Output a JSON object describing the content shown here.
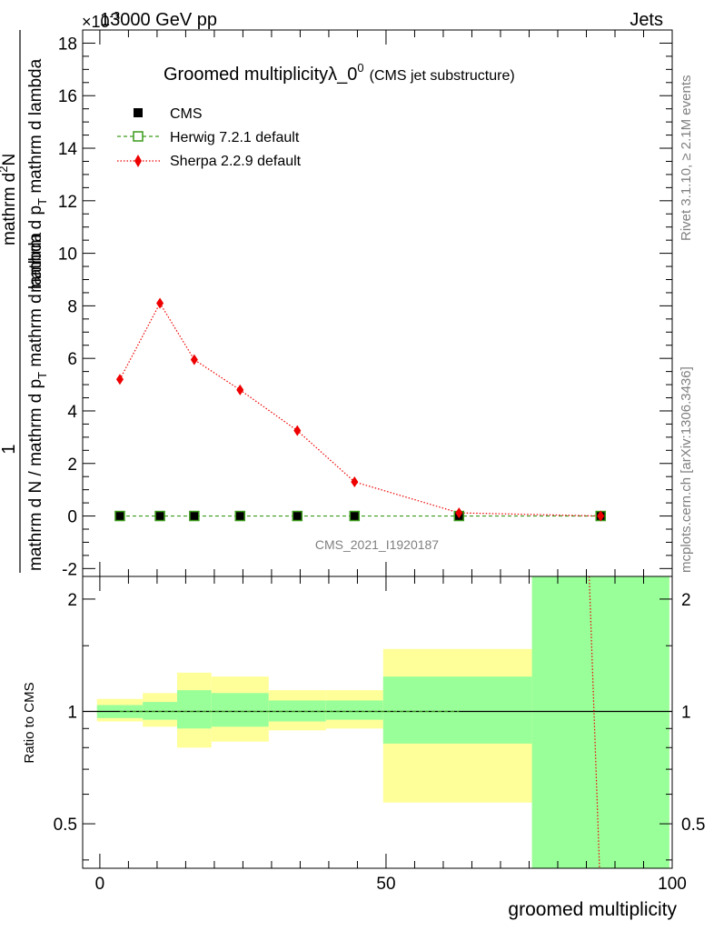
{
  "header": {
    "left": "13000 GeV pp",
    "right": "Jets",
    "exponent": "×10",
    "exponent_power": "-3"
  },
  "side_labels": {
    "rivet": "Rivet 3.1.10, ≥ 2.1M events",
    "mcplots": "mcplots.cern.ch [arXiv:1306.3436]"
  },
  "watermark": "CMS_2021_I1920187",
  "chart_data": [
    {
      "type": "line",
      "title_main": "Groomed multiplicityλ_0",
      "title_sup": "0",
      "title_sub": "(CMS jet substructure)",
      "ylabel_top": "1",
      "ylabel_numerator": "mathrm d",
      "ylabel_numerator_sup": "2",
      "ylabel_numerator_tail": "N",
      "ylabel_sub_p": "T",
      "ylabel_full_num": "mathrm d p",
      "ylabel_full_tail": " mathrm d lambda",
      "ylabel_den_pre": "mathrm d N / mathrm d p",
      "ylabel_den_tail": " mathrm d lambda",
      "ylim": [
        -2.3,
        18.5
      ],
      "yticks": [
        -2,
        0,
        2,
        4,
        6,
        8,
        10,
        12,
        14,
        16,
        18
      ],
      "xlim": [
        -3,
        100
      ],
      "legend": [
        {
          "name": "CMS",
          "marker": "square-filled",
          "color": "#000000"
        },
        {
          "name": "Herwig 7.2.1 default",
          "marker": "square-open",
          "color": "#3a9a1a"
        },
        {
          "name": "Sherpa 2.2.9 default",
          "marker": "diamond",
          "color": "#ee0000"
        }
      ],
      "series": [
        {
          "name": "CMS",
          "x": [
            3.5,
            10.5,
            16.5,
            24.5,
            34.5,
            44.5,
            62.75,
            87.5
          ],
          "y": [
            0,
            0,
            0,
            0,
            0,
            0,
            0,
            0
          ]
        },
        {
          "name": "Herwig 7.2.1 default",
          "x": [
            3.5,
            10.5,
            16.5,
            24.5,
            34.5,
            44.5,
            62.75,
            87.5
          ],
          "y": [
            0,
            0,
            0,
            0,
            0,
            0,
            0,
            0
          ]
        },
        {
          "name": "Sherpa 2.2.9 default",
          "x": [
            3.5,
            10.5,
            16.5,
            24.5,
            34.5,
            44.5,
            62.75,
            87.5
          ],
          "y": [
            5.2,
            8.1,
            5.95,
            4.8,
            3.25,
            1.3,
            0.12,
            0.0
          ]
        }
      ]
    },
    {
      "type": "area",
      "ylabel": "Ratio to CMS",
      "xlabel": "groomed multiplicity",
      "ylim": [
        0.38,
        2.3
      ],
      "yticks": [
        0.5,
        1,
        2
      ],
      "xlim": [
        -3,
        100
      ],
      "xticks": [
        0,
        50,
        100
      ],
      "bins": [
        {
          "x0": -0.5,
          "x1": 7.5,
          "y_lo": 0.94,
          "y_hi": 1.08,
          "g_lo": 0.96,
          "g_hi": 1.04
        },
        {
          "x0": 7.5,
          "x1": 13.5,
          "y_lo": 0.91,
          "y_hi": 1.12,
          "g_lo": 0.95,
          "g_hi": 1.06
        },
        {
          "x0": 13.5,
          "x1": 19.5,
          "y_lo": 0.8,
          "y_hi": 1.27,
          "g_lo": 0.9,
          "g_hi": 1.14
        },
        {
          "x0": 19.5,
          "x1": 29.5,
          "y_lo": 0.83,
          "y_hi": 1.24,
          "g_lo": 0.91,
          "g_hi": 1.12
        },
        {
          "x0": 29.5,
          "x1": 39.5,
          "y_lo": 0.89,
          "y_hi": 1.14,
          "g_lo": 0.94,
          "g_hi": 1.07
        },
        {
          "x0": 39.5,
          "x1": 49.5,
          "y_lo": 0.9,
          "y_hi": 1.14,
          "g_lo": 0.95,
          "g_hi": 1.07
        },
        {
          "x0": 49.5,
          "x1": 75.5,
          "y_lo": 0.57,
          "y_hi": 1.47,
          "g_lo": 0.82,
          "g_hi": 1.24
        },
        {
          "x0": 75.5,
          "x1": 99.5,
          "y_lo": 0.3,
          "y_hi": 2.5,
          "g_lo": 0.3,
          "g_hi": 2.5
        }
      ],
      "sherpa_ratio_line": {
        "x": [
          85.5,
          87.3
        ],
        "y": [
          2.3,
          0.38
        ]
      },
      "colors": {
        "yellow": "#ffff99",
        "green": "#99ff99",
        "sherpa": "#ee0000",
        "herwig": "#3a9a1a"
      }
    }
  ]
}
